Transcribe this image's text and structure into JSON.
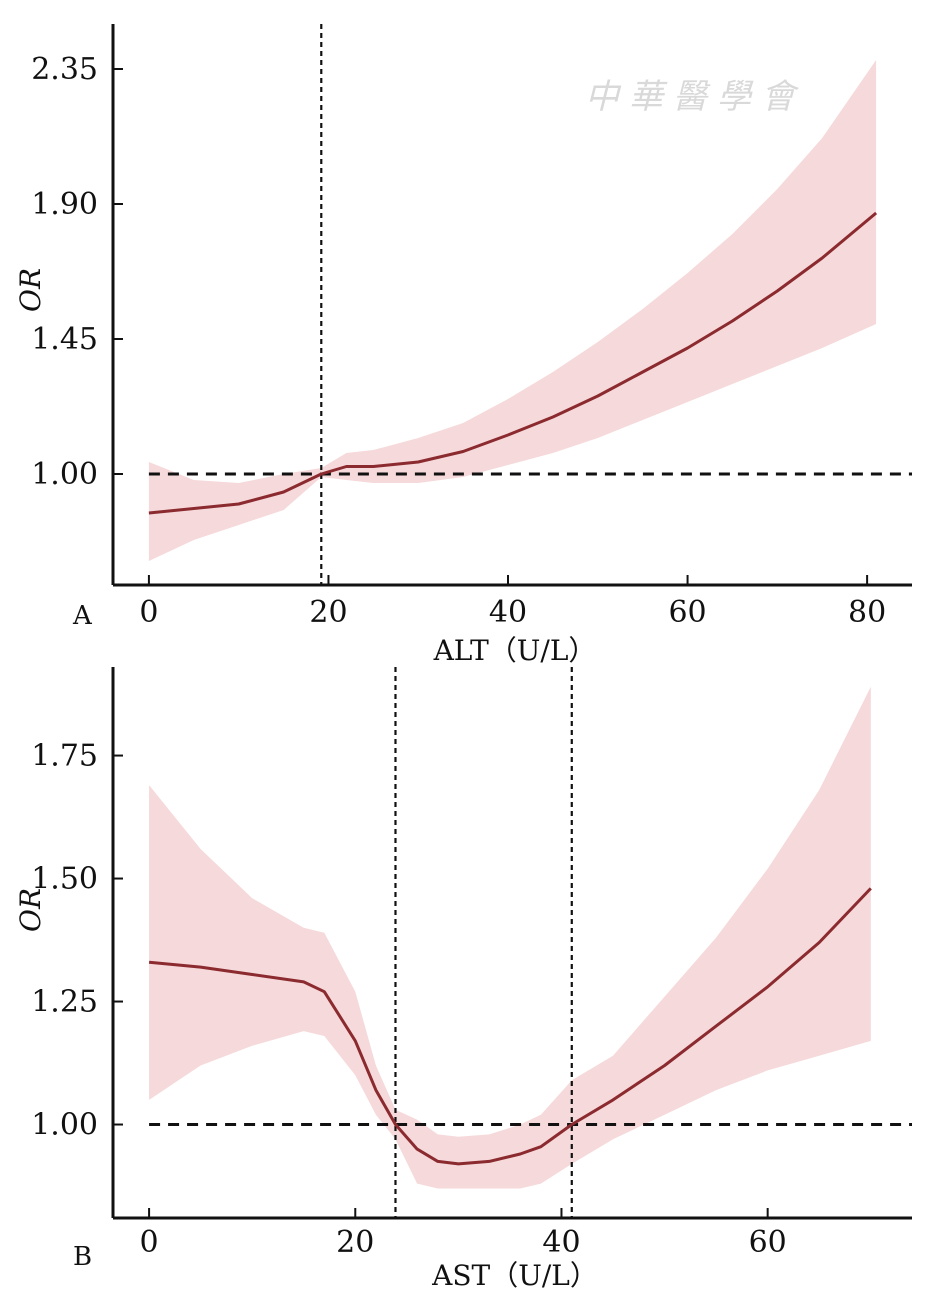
{
  "watermark": "中華醫學會",
  "chart_data": [
    {
      "type": "line",
      "panel_label": "A",
      "xlabel": "ALT（U/L）",
      "ylabel": "OR",
      "xlim": [
        -4,
        85
      ],
      "ylim": [
        0.63,
        2.5
      ],
      "x_ticks": [
        0,
        20,
        40,
        60,
        80
      ],
      "y_ticks": [
        1.0,
        1.45,
        1.9,
        2.35
      ],
      "y_tick_labels": [
        "1.00",
        "1.45",
        "1.90",
        "2.35"
      ],
      "reference_line_y": 1.0,
      "vertical_lines_x": [
        19.2
      ],
      "colors": {
        "line": "#8b2a2f",
        "band": "#f6d9da"
      },
      "series": [
        {
          "x": [
            0,
            5,
            10,
            15,
            19.2,
            22,
            25,
            30,
            35,
            40,
            45,
            50,
            55,
            60,
            65,
            70,
            75,
            81
          ],
          "y": [
            0.87,
            0.885,
            0.9,
            0.94,
            1.0,
            1.025,
            1.025,
            1.04,
            1.075,
            1.13,
            1.19,
            1.26,
            1.34,
            1.42,
            1.51,
            1.61,
            1.72,
            1.87
          ],
          "lower": [
            0.71,
            0.78,
            0.83,
            0.88,
            0.99,
            0.98,
            0.97,
            0.97,
            0.99,
            1.03,
            1.07,
            1.12,
            1.18,
            1.24,
            1.3,
            1.36,
            1.42,
            1.5
          ],
          "upper": [
            1.04,
            0.98,
            0.97,
            1.0,
            1.02,
            1.07,
            1.08,
            1.12,
            1.17,
            1.25,
            1.34,
            1.44,
            1.55,
            1.67,
            1.8,
            1.95,
            2.12,
            2.38
          ]
        }
      ]
    },
    {
      "type": "line",
      "panel_label": "B",
      "xlabel": "AST（U/L）",
      "ylabel": "OR",
      "xlim": [
        -3.5,
        74
      ],
      "ylim": [
        0.81,
        1.93
      ],
      "x_ticks": [
        0,
        20,
        40,
        60
      ],
      "y_ticks": [
        1.0,
        1.25,
        1.5,
        1.75
      ],
      "y_tick_labels": [
        "1.00",
        "1.25",
        "1.50",
        "1.75"
      ],
      "reference_line_y": 1.0,
      "vertical_lines_x": [
        23.9,
        41
      ],
      "colors": {
        "line": "#8b2a2f",
        "band": "#f6d9da"
      },
      "series": [
        {
          "x": [
            0,
            5,
            10,
            15,
            17,
            20,
            22,
            23.9,
            26,
            28,
            30,
            33,
            36,
            38,
            41,
            45,
            50,
            55,
            60,
            65,
            70
          ],
          "y": [
            1.33,
            1.32,
            1.305,
            1.29,
            1.27,
            1.17,
            1.07,
            1.0,
            0.95,
            0.925,
            0.92,
            0.925,
            0.94,
            0.955,
            1.0,
            1.05,
            1.12,
            1.2,
            1.28,
            1.37,
            1.48
          ],
          "lower": [
            1.05,
            1.12,
            1.16,
            1.19,
            1.18,
            1.1,
            1.02,
            0.97,
            0.88,
            0.87,
            0.87,
            0.87,
            0.87,
            0.88,
            0.92,
            0.97,
            1.02,
            1.07,
            1.11,
            1.14,
            1.17
          ],
          "upper": [
            1.69,
            1.56,
            1.46,
            1.4,
            1.39,
            1.27,
            1.12,
            1.03,
            1.01,
            0.98,
            0.975,
            0.98,
            1.0,
            1.02,
            1.09,
            1.14,
            1.26,
            1.38,
            1.52,
            1.68,
            1.89
          ]
        }
      ]
    }
  ]
}
